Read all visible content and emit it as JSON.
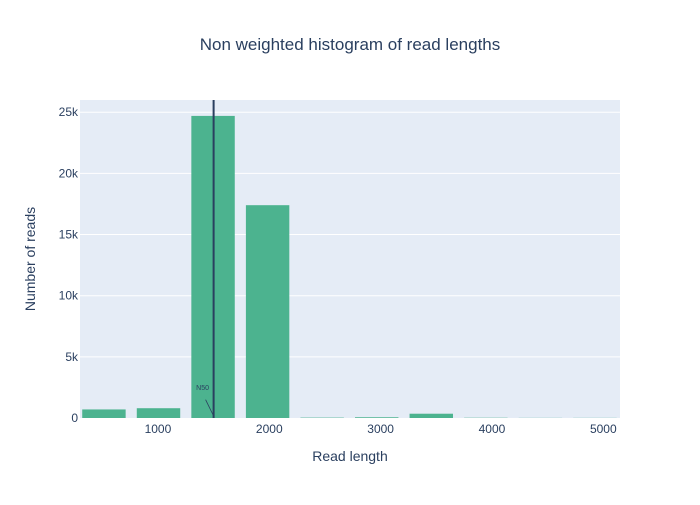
{
  "chart_data": {
    "type": "bar",
    "title": "Non weighted histogram of read lengths",
    "xlabel": "Read length",
    "ylabel": "Number of reads",
    "xlim": [
      300,
      5150
    ],
    "ylim": [
      0,
      26000
    ],
    "x_ticks": [
      1000,
      2000,
      3000,
      4000,
      5000
    ],
    "x_tick_labels": [
      "1000",
      "2000",
      "3000",
      "4000",
      "5000"
    ],
    "y_ticks": [
      0,
      5000,
      10000,
      15000,
      20000,
      25000
    ],
    "y_tick_labels": [
      "0",
      "5k",
      "10k",
      "15k",
      "20k",
      "25k"
    ],
    "bins": [
      {
        "x0": 320,
        "x1": 710,
        "value": 700
      },
      {
        "x0": 810,
        "x1": 1200,
        "value": 800
      },
      {
        "x0": 1300,
        "x1": 1690,
        "value": 24700
      },
      {
        "x0": 1790,
        "x1": 2180,
        "value": 17400
      },
      {
        "x0": 2280,
        "x1": 2670,
        "value": 30
      },
      {
        "x0": 2770,
        "x1": 3160,
        "value": 60
      },
      {
        "x0": 3260,
        "x1": 3650,
        "value": 350
      },
      {
        "x0": 3750,
        "x1": 4140,
        "value": 20
      },
      {
        "x0": 4240,
        "x1": 4630,
        "value": 10
      },
      {
        "x0": 4730,
        "x1": 5120,
        "value": 10
      }
    ],
    "grid": true,
    "bar_color": "#4cb38f",
    "plot_bg": "#e5ecf6",
    "annotation": {
      "text": "N50",
      "x": 1500
    }
  }
}
